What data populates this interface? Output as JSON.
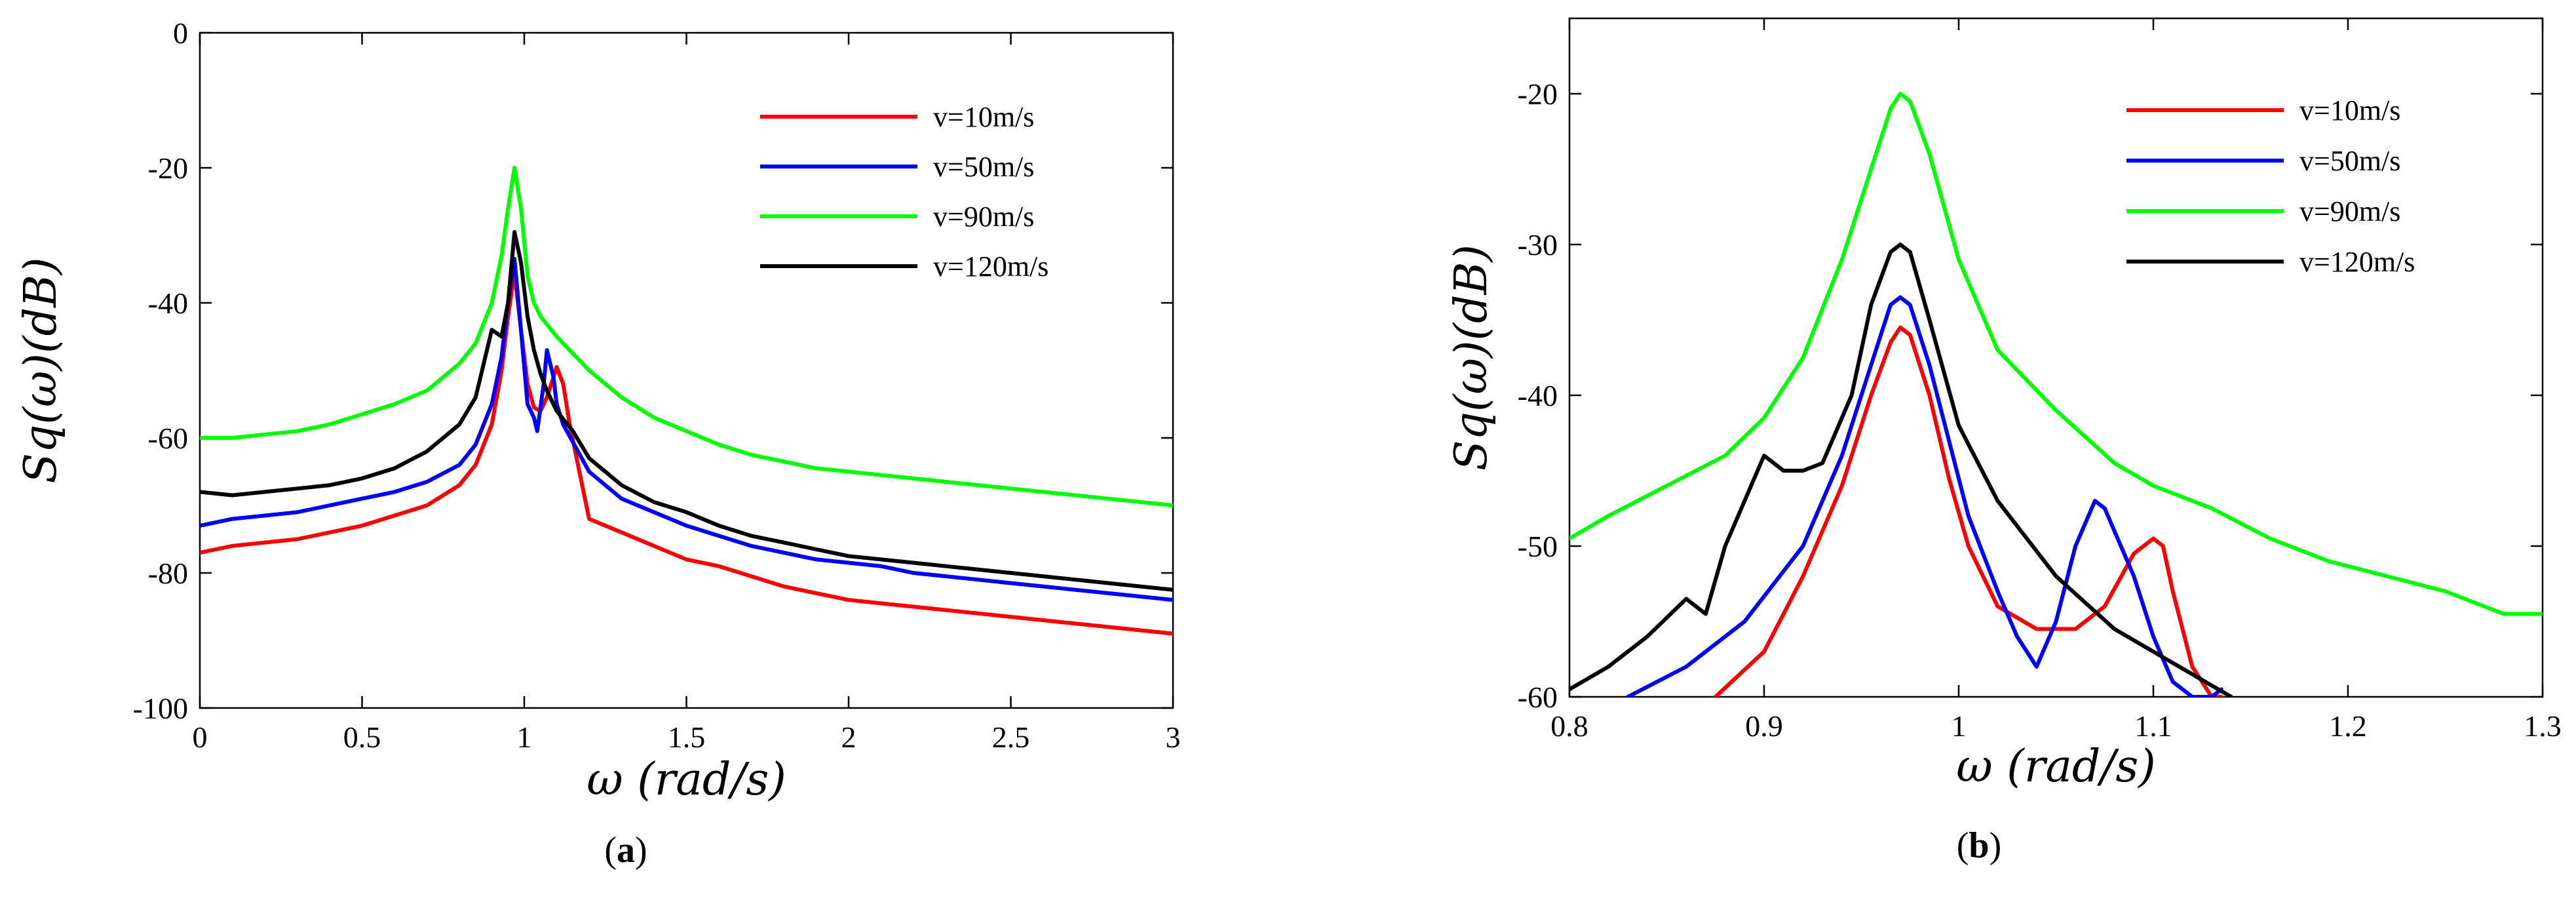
{
  "chart_data": [
    {
      "panel_label": "a",
      "type": "line",
      "xlabel": "ω (rad/s)",
      "ylabel": "Sq(ω)(dB)",
      "xlim": [
        0,
        3
      ],
      "ylim": [
        -100,
        0
      ],
      "xticks": [
        0,
        0.5,
        1,
        1.5,
        2,
        2.5,
        3
      ],
      "xtick_labels": [
        "0",
        "0.5",
        "1",
        "1.5",
        "2",
        "2.5",
        "3"
      ],
      "yticks": [
        -100,
        -80,
        -60,
        -40,
        -20,
        0
      ],
      "ytick_labels": [
        "-100",
        "-80",
        "-60",
        "-40",
        "-20",
        "0"
      ],
      "grid": false,
      "legend_position": "top-right",
      "series": [
        {
          "name": "v=10m/s",
          "color": "#ff0000",
          "x": [
            0,
            0.1,
            0.2,
            0.3,
            0.4,
            0.5,
            0.6,
            0.7,
            0.8,
            0.85,
            0.9,
            0.93,
            0.95,
            0.97,
            0.99,
            1.01,
            1.03,
            1.05,
            1.07,
            1.09,
            1.1,
            1.12,
            1.14,
            1.2,
            1.3,
            1.4,
            1.5,
            1.6,
            1.7,
            1.8,
            1.9,
            2.0,
            2.1,
            2.2,
            2.3,
            2.4,
            2.5,
            2.6,
            2.7,
            2.8,
            2.9,
            3.0
          ],
          "y": [
            -77,
            -76,
            -75.5,
            -75,
            -74,
            -73,
            -71.5,
            -70,
            -67,
            -64,
            -58,
            -50,
            -42,
            -35.5,
            -44,
            -52,
            -55.5,
            -56,
            -54,
            -51,
            -49.5,
            -52,
            -58,
            -72,
            -74,
            -76,
            -78,
            -79,
            -80.5,
            -82,
            -83,
            -84,
            -84.5,
            -85,
            -85.5,
            -86,
            -86.5,
            -87,
            -87.5,
            -88,
            -88.5,
            -89
          ]
        },
        {
          "name": "v=50m/s",
          "color": "#0000ff",
          "x": [
            0,
            0.1,
            0.2,
            0.3,
            0.4,
            0.5,
            0.6,
            0.7,
            0.8,
            0.85,
            0.9,
            0.93,
            0.95,
            0.97,
            0.99,
            1.01,
            1.03,
            1.04,
            1.06,
            1.07,
            1.09,
            1.1,
            1.12,
            1.2,
            1.3,
            1.4,
            1.5,
            1.6,
            1.7,
            1.8,
            1.9,
            2.0,
            2.1,
            2.2,
            2.3,
            2.4,
            2.5,
            2.6,
            2.7,
            2.8,
            2.9,
            3.0
          ],
          "y": [
            -73,
            -72,
            -71.5,
            -71,
            -70,
            -69,
            -68,
            -66.5,
            -64,
            -61,
            -55,
            -48,
            -40,
            -33.5,
            -44,
            -55,
            -57,
            -59,
            -52,
            -47,
            -51,
            -55,
            -58,
            -65,
            -69,
            -71,
            -73,
            -74.5,
            -76,
            -77,
            -78,
            -78.5,
            -79,
            -80,
            -80.5,
            -81,
            -81.5,
            -82,
            -82.5,
            -83,
            -83.5,
            -84
          ]
        },
        {
          "name": "v=90m/s",
          "color": "#00ff00",
          "x": [
            0,
            0.1,
            0.2,
            0.3,
            0.4,
            0.5,
            0.6,
            0.7,
            0.8,
            0.85,
            0.9,
            0.93,
            0.95,
            0.97,
            0.99,
            1.01,
            1.03,
            1.05,
            1.1,
            1.2,
            1.3,
            1.4,
            1.5,
            1.6,
            1.7,
            1.8,
            1.9,
            2.0,
            2.1,
            2.2,
            2.3,
            2.4,
            2.5,
            2.6,
            2.7,
            2.8,
            2.9,
            3.0
          ],
          "y": [
            -60,
            -60,
            -59.5,
            -59,
            -58,
            -56.5,
            -55,
            -53,
            -49,
            -46,
            -40,
            -33,
            -26,
            -20,
            -26,
            -36,
            -40,
            -42,
            -45,
            -50,
            -54,
            -57,
            -59,
            -61,
            -62.5,
            -63.5,
            -64.5,
            -65,
            -65.5,
            -66,
            -66.5,
            -67,
            -67.5,
            -68,
            -68.5,
            -69,
            -69.5,
            -70
          ]
        },
        {
          "name": "v=120m/s",
          "color": "#000000",
          "x": [
            0,
            0.1,
            0.2,
            0.3,
            0.4,
            0.5,
            0.6,
            0.7,
            0.8,
            0.85,
            0.88,
            0.9,
            0.93,
            0.95,
            0.97,
            0.99,
            1.01,
            1.03,
            1.05,
            1.07,
            1.1,
            1.15,
            1.2,
            1.3,
            1.4,
            1.5,
            1.6,
            1.7,
            1.8,
            1.9,
            2.0,
            2.1,
            2.2,
            2.3,
            2.4,
            2.5,
            2.6,
            2.7,
            2.8,
            2.9,
            3.0
          ],
          "y": [
            -68,
            -68.5,
            -68,
            -67.5,
            -67,
            -66,
            -64.5,
            -62,
            -58,
            -54,
            -48,
            -44,
            -45,
            -40,
            -29.5,
            -34,
            -42,
            -47,
            -50.5,
            -53,
            -56,
            -59,
            -63,
            -67,
            -69.5,
            -71,
            -73,
            -74.5,
            -75.5,
            -76.5,
            -77.5,
            -78,
            -78.5,
            -79,
            -79.5,
            -80,
            -80.5,
            -81,
            -81.5,
            -82,
            -82.5
          ]
        }
      ]
    },
    {
      "panel_label": "b",
      "type": "line",
      "xlabel": "ω (rad/s)",
      "ylabel": "Sq(ω)(dB)",
      "xlim": [
        0.8,
        1.3
      ],
      "ylim": [
        -60,
        -15
      ],
      "xticks": [
        0.8,
        0.9,
        1.0,
        1.1,
        1.2,
        1.3
      ],
      "xtick_labels": [
        "0.8",
        "0.9",
        "1",
        "1.1",
        "1.2",
        "1.3"
      ],
      "yticks": [
        -60,
        -50,
        -40,
        -30,
        -20
      ],
      "ytick_labels": [
        "-60",
        "-50",
        "-40",
        "-30",
        "-20"
      ],
      "grid": false,
      "legend_position": "top-right",
      "series": [
        {
          "name": "v=10m/s",
          "color": "#ff0000",
          "x": [
            0.875,
            0.9,
            0.92,
            0.94,
            0.955,
            0.965,
            0.97,
            0.975,
            0.985,
            0.995,
            1.005,
            1.02,
            1.04,
            1.06,
            1.075,
            1.09,
            1.1,
            1.105,
            1.11,
            1.12,
            1.13,
            1.135
          ],
          "y": [
            -60,
            -57,
            -52,
            -46,
            -40,
            -36.5,
            -35.5,
            -36,
            -40,
            -45.5,
            -50,
            -54,
            -55.5,
            -55.5,
            -54,
            -50.5,
            -49.5,
            -50,
            -53,
            -58,
            -60,
            -60
          ]
        },
        {
          "name": "v=50m/s",
          "color": "#0000ff",
          "x": [
            0.83,
            0.86,
            0.89,
            0.92,
            0.94,
            0.955,
            0.965,
            0.97,
            0.975,
            0.985,
            0.995,
            1.005,
            1.02,
            1.03,
            1.04,
            1.05,
            1.06,
            1.07,
            1.075,
            1.08,
            1.09,
            1.1,
            1.11,
            1.12,
            1.13,
            1.135
          ],
          "y": [
            -60,
            -58,
            -55,
            -50,
            -44,
            -38,
            -34,
            -33.5,
            -34,
            -38,
            -43,
            -48,
            -53,
            -56,
            -58,
            -55,
            -50,
            -47,
            -47.5,
            -49,
            -52,
            -56,
            -59,
            -60,
            -60,
            -59.5
          ]
        },
        {
          "name": "v=90m/s",
          "color": "#00ff00",
          "x": [
            0.8,
            0.82,
            0.85,
            0.88,
            0.9,
            0.92,
            0.94,
            0.955,
            0.965,
            0.97,
            0.975,
            0.985,
            1.0,
            1.02,
            1.05,
            1.08,
            1.1,
            1.13,
            1.16,
            1.19,
            1.22,
            1.25,
            1.28,
            1.3
          ],
          "y": [
            -49.5,
            -48,
            -46,
            -44,
            -41.5,
            -37.5,
            -31,
            -25,
            -21,
            -20,
            -20.5,
            -24,
            -31,
            -37,
            -41,
            -44.5,
            -46,
            -47.5,
            -49.5,
            -51,
            -52,
            -53,
            -54.5,
            -54.5
          ]
        },
        {
          "name": "v=120m/s",
          "color": "#000000",
          "x": [
            0.8,
            0.82,
            0.84,
            0.86,
            0.87,
            0.88,
            0.89,
            0.9,
            0.91,
            0.92,
            0.93,
            0.945,
            0.955,
            0.965,
            0.97,
            0.975,
            0.985,
            1.0,
            1.02,
            1.05,
            1.08,
            1.1,
            1.12,
            1.14
          ],
          "y": [
            -59.5,
            -58,
            -56,
            -53.5,
            -54.5,
            -50,
            -47,
            -44,
            -45,
            -45,
            -44.5,
            -40,
            -34,
            -30.5,
            -30,
            -30.5,
            -35,
            -42,
            -47,
            -52,
            -55.5,
            -57,
            -58.5,
            -60
          ]
        }
      ]
    }
  ]
}
